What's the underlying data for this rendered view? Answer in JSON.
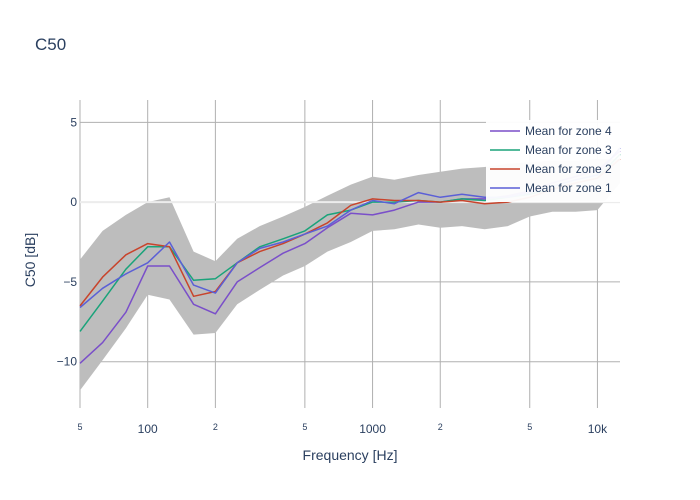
{
  "chart_data": {
    "type": "line",
    "title": "C50",
    "xlabel": "Frequency [Hz]",
    "ylabel": "C50 [dB]",
    "xscale": "log",
    "xlim": [
      50,
      12600
    ],
    "ylim": [
      -12.9,
      6.4
    ],
    "grid": true,
    "legend_placement": "top-right",
    "x_ticks": [
      {
        "value": 50,
        "label": "5",
        "minor": true
      },
      {
        "value": 100,
        "label": "100",
        "minor": false
      },
      {
        "value": 200,
        "label": "2",
        "minor": true
      },
      {
        "value": 500,
        "label": "5",
        "minor": true
      },
      {
        "value": 1000,
        "label": "1000",
        "minor": false
      },
      {
        "value": 2000,
        "label": "2",
        "minor": true
      },
      {
        "value": 5000,
        "label": "5",
        "minor": true
      },
      {
        "value": 10000,
        "label": "10k",
        "minor": false
      }
    ],
    "y_ticks": [
      {
        "value": 5,
        "label": "5"
      },
      {
        "value": 0,
        "label": "0"
      },
      {
        "value": -5,
        "label": "−5"
      },
      {
        "value": -10,
        "label": "−10"
      }
    ],
    "x": [
      50,
      63,
      80,
      100,
      125,
      160,
      200,
      250,
      315,
      400,
      500,
      630,
      800,
      1000,
      1250,
      1600,
      2000,
      2500,
      3150,
      4000,
      5000,
      6300,
      8000,
      10000,
      12600
    ],
    "band": {
      "color": "#bdbdbd",
      "upper": [
        -3.6,
        -1.8,
        -0.8,
        0.0,
        0.3,
        -3.1,
        -3.7,
        -2.3,
        -1.5,
        -0.9,
        -0.3,
        0.4,
        1.1,
        1.6,
        1.4,
        1.7,
        1.9,
        2.1,
        2.2,
        2.4,
        2.5,
        2.6,
        2.6,
        2.7,
        2.7
      ],
      "lower": [
        -11.8,
        -9.9,
        -7.9,
        -5.8,
        -6.1,
        -8.3,
        -8.2,
        -6.4,
        -5.5,
        -4.6,
        -4.0,
        -3.1,
        -2.5,
        -1.8,
        -1.7,
        -1.4,
        -1.6,
        -1.5,
        -1.7,
        -1.5,
        -0.9,
        -0.6,
        -0.6,
        -0.5,
        1.2
      ]
    },
    "series": [
      {
        "name": "Mean for zone 4",
        "color": "#7a4fc9",
        "values": [
          -10.1,
          -8.8,
          -6.9,
          -4.0,
          -4.0,
          -6.4,
          -7.0,
          -5.0,
          -4.1,
          -3.2,
          -2.6,
          -1.6,
          -0.7,
          -0.8,
          -0.5,
          0.0,
          0.0,
          0.2,
          0.2,
          0.4,
          0.7,
          1.2,
          1.6,
          2.0,
          3.2
        ]
      },
      {
        "name": "Mean for zone 3",
        "color": "#1aa37a",
        "values": [
          -8.1,
          -6.2,
          -4.2,
          -2.8,
          -2.8,
          -4.9,
          -4.8,
          -3.8,
          -2.8,
          -2.3,
          -1.8,
          -0.8,
          -0.5,
          0.0,
          0.0,
          0.1,
          0.0,
          0.2,
          0.1,
          0.3,
          0.5,
          0.8,
          1.2,
          1.5,
          3.0
        ]
      },
      {
        "name": "Mean for zone 2",
        "color": "#c8442c",
        "values": [
          -6.5,
          -4.7,
          -3.3,
          -2.6,
          -2.8,
          -5.9,
          -5.6,
          -3.8,
          -3.1,
          -2.6,
          -2.0,
          -1.3,
          -0.2,
          0.2,
          0.1,
          0.1,
          0.0,
          0.1,
          -0.1,
          0.0,
          0.3,
          0.8,
          1.2,
          1.5,
          2.7
        ]
      },
      {
        "name": "Mean for zone 1",
        "color": "#5b5fd6",
        "values": [
          -6.6,
          -5.4,
          -4.5,
          -3.8,
          -2.5,
          -5.2,
          -5.7,
          -3.8,
          -2.9,
          -2.5,
          -2.0,
          -1.5,
          -0.5,
          0.1,
          -0.1,
          0.6,
          0.3,
          0.5,
          0.3,
          0.3,
          0.6,
          1.0,
          1.4,
          1.7,
          3.4
        ]
      }
    ]
  }
}
